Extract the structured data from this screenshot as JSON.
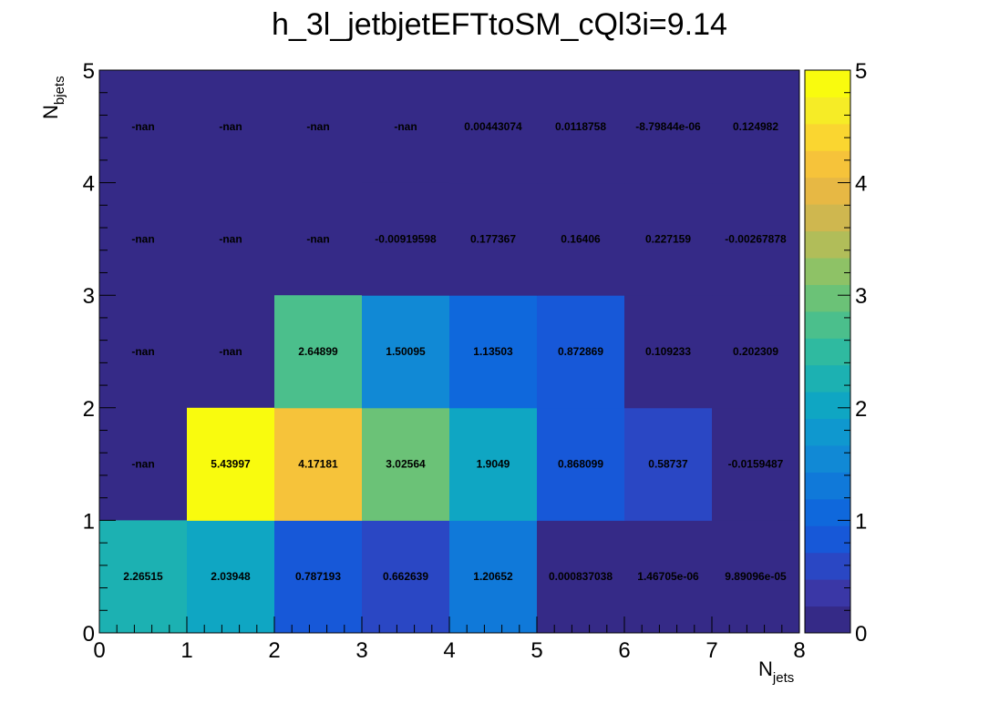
{
  "chart_data": {
    "type": "heatmap",
    "title": "h_3l_jetbjetEFTtoSM_cQl3i=9.14",
    "xlabel_main": "N",
    "xlabel_sub": "jets",
    "ylabel_main": "N",
    "ylabel_sub": "bjets",
    "xlim": [
      0,
      8
    ],
    "ylim": [
      0,
      5
    ],
    "zlim": [
      0,
      5
    ],
    "x_ticks": [
      "0",
      "1",
      "2",
      "3",
      "4",
      "5",
      "6",
      "7",
      "8"
    ],
    "y_ticks": [
      "0",
      "1",
      "2",
      "3",
      "4",
      "5"
    ],
    "z_ticks": [
      "0",
      "1",
      "2",
      "3",
      "4",
      "5"
    ],
    "palette": [
      "#352a87",
      "#3a37a6",
      "#2a47c4",
      "#1758d8",
      "#0f68dc",
      "#1079d9",
      "#1189d5",
      "#0f98cf",
      "#0fa6c3",
      "#1cb1b2",
      "#2fbaa0",
      "#4bbf8c",
      "#6bc277",
      "#8ec266",
      "#b1bd59",
      "#cfb74f",
      "#e7b844",
      "#f6c33a",
      "#fad630",
      "#f6ec26",
      "#f9fb0e"
    ],
    "rows": [
      {
        "y": 0,
        "values": [
          2.26515,
          2.03948,
          0.787193,
          0.662639,
          1.20652,
          0.000837038,
          1.46705e-06,
          9.89096e-05
        ],
        "labels": [
          "2.26515",
          "2.03948",
          "0.787193",
          "0.662639",
          "1.20652",
          "0.000837038",
          "1.46705e-06",
          "9.89096e-05"
        ]
      },
      {
        "y": 1,
        "values": [
          null,
          5.43997,
          4.17181,
          3.02564,
          1.9049,
          0.868099,
          0.58737,
          -0.0159487
        ],
        "labels": [
          "-nan",
          "5.43997",
          "4.17181",
          "3.02564",
          "1.9049",
          "0.868099",
          "0.58737",
          "-0.0159487"
        ]
      },
      {
        "y": 2,
        "values": [
          null,
          null,
          2.64899,
          1.50095,
          1.13503,
          0.872869,
          0.109233,
          0.202309
        ],
        "labels": [
          "-nan",
          "-nan",
          "2.64899",
          "1.50095",
          "1.13503",
          "0.872869",
          "0.109233",
          "0.202309"
        ]
      },
      {
        "y": 3,
        "values": [
          null,
          null,
          null,
          -0.00919598,
          0.177367,
          0.16406,
          0.227159,
          -0.00267878
        ],
        "labels": [
          "-nan",
          "-nan",
          "-nan",
          "-0.00919598",
          "0.177367",
          "0.16406",
          "0.227159",
          "-0.00267878"
        ]
      },
      {
        "y": 4,
        "values": [
          null,
          null,
          null,
          null,
          0.00443074,
          0.0118758,
          -8.79844e-06,
          0.124982
        ],
        "labels": [
          "-nan",
          "-nan",
          "-nan",
          "-nan",
          "0.00443074",
          "0.0118758",
          "-8.79844e-06",
          "0.124982"
        ]
      }
    ]
  }
}
